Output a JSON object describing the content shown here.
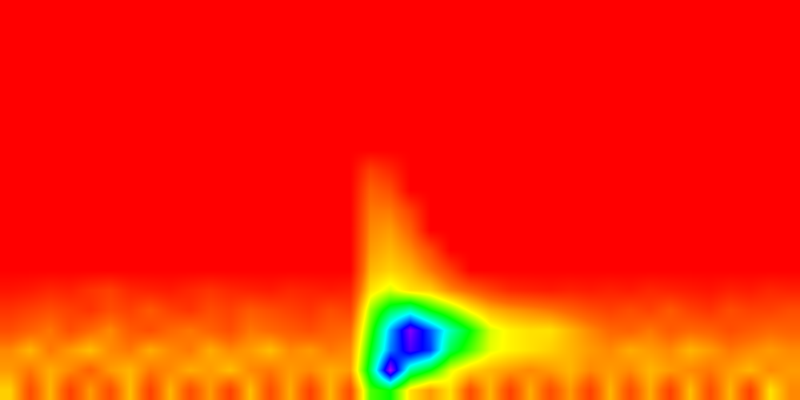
{
  "chart_data": {
    "type": "heatmap",
    "tick_labels": false,
    "grid": false,
    "xlim": [
      0,
      40
    ],
    "ylim": [
      0,
      20
    ],
    "zlim": [
      0,
      1
    ],
    "colors": [
      "#ff0000",
      "#ff6a00",
      "#ffff00",
      "#00ff00",
      "#00ffff",
      "#0000ff",
      "#ff00ff"
    ],
    "cells": [
      [
        0.28,
        0.12,
        0.25,
        0.1,
        0.22,
        0.12,
        0.26,
        0.1,
        0.25,
        0.12,
        0.22,
        0.1,
        0.26,
        0.12,
        0.24,
        0.1,
        0.25,
        0.12,
        0.45,
        0.5,
        0.3,
        0.22,
        0.3,
        0.12,
        0.25,
        0.1,
        0.24,
        0.12,
        0.22,
        0.1,
        0.25,
        0.12,
        0.24,
        0.1,
        0.26,
        0.12,
        0.25,
        0.1,
        0.3,
        0.2
      ],
      [
        0.22,
        0.18,
        0.24,
        0.2,
        0.15,
        0.22,
        0.25,
        0.18,
        0.2,
        0.24,
        0.22,
        0.26,
        0.2,
        0.18,
        0.22,
        0.2,
        0.24,
        0.22,
        0.55,
        0.95,
        0.6,
        0.5,
        0.35,
        0.28,
        0.25,
        0.22,
        0.2,
        0.22,
        0.25,
        0.2,
        0.22,
        0.2,
        0.25,
        0.22,
        0.2,
        0.18,
        0.22,
        0.25,
        0.2,
        0.22
      ],
      [
        0.2,
        0.25,
        0.18,
        0.22,
        0.26,
        0.2,
        0.18,
        0.24,
        0.2,
        0.18,
        0.24,
        0.2,
        0.22,
        0.26,
        0.2,
        0.22,
        0.18,
        0.2,
        0.5,
        0.75,
        0.88,
        0.8,
        0.55,
        0.45,
        0.35,
        0.32,
        0.3,
        0.28,
        0.25,
        0.22,
        0.2,
        0.24,
        0.22,
        0.2,
        0.25,
        0.22,
        0.18,
        0.2,
        0.22,
        0.2
      ],
      [
        0.12,
        0.15,
        0.18,
        0.12,
        0.16,
        0.2,
        0.14,
        0.12,
        0.16,
        0.18,
        0.15,
        0.12,
        0.18,
        0.16,
        0.14,
        0.12,
        0.15,
        0.16,
        0.45,
        0.72,
        0.92,
        0.78,
        0.62,
        0.5,
        0.36,
        0.32,
        0.3,
        0.3,
        0.25,
        0.2,
        0.16,
        0.15,
        0.18,
        0.14,
        0.16,
        0.15,
        0.12,
        0.14,
        0.16,
        0.15
      ],
      [
        0.08,
        0.1,
        0.12,
        0.1,
        0.08,
        0.12,
        0.1,
        0.14,
        0.1,
        0.08,
        0.12,
        0.1,
        0.14,
        0.12,
        0.1,
        0.08,
        0.12,
        0.1,
        0.4,
        0.55,
        0.62,
        0.5,
        0.42,
        0.32,
        0.25,
        0.22,
        0.2,
        0.18,
        0.15,
        0.12,
        0.1,
        0.12,
        0.1,
        0.14,
        0.1,
        0.08,
        0.12,
        0.1,
        0.1,
        0.12
      ],
      [
        0.03,
        0.04,
        0.06,
        0.05,
        0.08,
        0.1,
        0.06,
        0.05,
        0.04,
        0.06,
        0.08,
        0.06,
        0.05,
        0.04,
        0.06,
        0.05,
        0.04,
        0.05,
        0.3,
        0.36,
        0.3,
        0.28,
        0.2,
        0.15,
        0.1,
        0.06,
        0.05,
        0.04,
        0.05,
        0.04,
        0.05,
        0.04,
        0.06,
        0.05,
        0.04,
        0.03,
        0.05,
        0.04,
        0.06,
        0.05
      ],
      [
        0,
        0,
        0,
        0,
        0,
        0,
        0,
        0,
        0,
        0,
        0,
        0,
        0,
        0,
        0,
        0,
        0,
        0,
        0.25,
        0.28,
        0.25,
        0.18,
        0.1,
        0,
        0,
        0,
        0,
        0,
        0,
        0,
        0,
        0,
        0,
        0,
        0,
        0,
        0,
        0,
        0,
        0
      ],
      [
        0,
        0,
        0,
        0,
        0,
        0,
        0,
        0,
        0,
        0,
        0,
        0,
        0,
        0,
        0,
        0,
        0,
        0,
        0.22,
        0.25,
        0.2,
        0.12,
        0,
        0,
        0,
        0,
        0,
        0,
        0,
        0,
        0,
        0,
        0,
        0,
        0,
        0,
        0,
        0,
        0,
        0
      ],
      [
        0,
        0,
        0,
        0,
        0,
        0,
        0,
        0,
        0,
        0,
        0,
        0,
        0,
        0,
        0,
        0,
        0,
        0,
        0.2,
        0.22,
        0.15,
        0,
        0,
        0,
        0,
        0,
        0,
        0,
        0,
        0,
        0,
        0,
        0,
        0,
        0,
        0,
        0,
        0,
        0,
        0
      ],
      [
        0,
        0,
        0,
        0,
        0,
        0,
        0,
        0,
        0,
        0,
        0,
        0,
        0,
        0,
        0,
        0,
        0,
        0,
        0.18,
        0.18,
        0.1,
        0,
        0,
        0,
        0,
        0,
        0,
        0,
        0,
        0,
        0,
        0,
        0,
        0,
        0,
        0,
        0,
        0,
        0,
        0
      ],
      [
        0,
        0,
        0,
        0,
        0,
        0,
        0,
        0,
        0,
        0,
        0,
        0,
        0,
        0,
        0,
        0,
        0,
        0,
        0.15,
        0.12,
        0,
        0,
        0,
        0,
        0,
        0,
        0,
        0,
        0,
        0,
        0,
        0,
        0,
        0,
        0,
        0,
        0,
        0,
        0,
        0
      ],
      [
        0,
        0,
        0,
        0,
        0,
        0,
        0,
        0,
        0,
        0,
        0,
        0,
        0,
        0,
        0,
        0,
        0,
        0,
        0.1,
        0.06,
        0,
        0,
        0,
        0,
        0,
        0,
        0,
        0,
        0,
        0,
        0,
        0,
        0,
        0,
        0,
        0,
        0,
        0,
        0,
        0
      ],
      [
        0,
        0,
        0,
        0,
        0,
        0,
        0,
        0,
        0,
        0,
        0,
        0,
        0,
        0,
        0,
        0,
        0,
        0,
        0,
        0,
        0,
        0,
        0,
        0,
        0,
        0,
        0,
        0,
        0,
        0,
        0,
        0,
        0,
        0,
        0,
        0,
        0,
        0,
        0,
        0
      ],
      [
        0,
        0,
        0,
        0,
        0,
        0,
        0,
        0,
        0,
        0,
        0,
        0,
        0,
        0,
        0,
        0,
        0,
        0,
        0,
        0,
        0,
        0,
        0,
        0,
        0,
        0,
        0,
        0,
        0,
        0,
        0,
        0,
        0,
        0,
        0,
        0,
        0,
        0,
        0,
        0
      ],
      [
        0,
        0,
        0,
        0,
        0,
        0,
        0,
        0,
        0,
        0,
        0,
        0,
        0,
        0,
        0,
        0,
        0,
        0,
        0,
        0,
        0,
        0,
        0,
        0,
        0,
        0,
        0,
        0,
        0,
        0,
        0,
        0,
        0,
        0,
        0,
        0,
        0,
        0,
        0,
        0
      ],
      [
        0,
        0,
        0,
        0,
        0,
        0,
        0,
        0,
        0,
        0,
        0,
        0,
        0,
        0,
        0,
        0,
        0,
        0,
        0,
        0,
        0,
        0,
        0,
        0,
        0,
        0,
        0,
        0,
        0,
        0,
        0,
        0,
        0,
        0,
        0,
        0,
        0,
        0,
        0,
        0
      ],
      [
        0,
        0,
        0,
        0,
        0,
        0,
        0,
        0,
        0,
        0,
        0,
        0,
        0,
        0,
        0,
        0,
        0,
        0,
        0,
        0,
        0,
        0,
        0,
        0,
        0,
        0,
        0,
        0,
        0,
        0,
        0,
        0,
        0,
        0,
        0,
        0,
        0,
        0,
        0,
        0
      ],
      [
        0,
        0,
        0,
        0,
        0,
        0,
        0,
        0,
        0,
        0,
        0,
        0,
        0,
        0,
        0,
        0,
        0,
        0,
        0,
        0,
        0,
        0,
        0,
        0,
        0,
        0,
        0,
        0,
        0,
        0,
        0,
        0,
        0,
        0,
        0,
        0,
        0,
        0,
        0,
        0
      ],
      [
        0,
        0,
        0,
        0,
        0,
        0,
        0,
        0,
        0,
        0,
        0,
        0,
        0,
        0,
        0,
        0,
        0,
        0,
        0,
        0,
        0,
        0,
        0,
        0,
        0,
        0,
        0,
        0,
        0,
        0,
        0,
        0,
        0,
        0,
        0,
        0,
        0,
        0,
        0,
        0
      ],
      [
        0,
        0,
        0,
        0,
        0,
        0,
        0,
        0,
        0,
        0,
        0,
        0,
        0,
        0,
        0,
        0,
        0,
        0,
        0,
        0,
        0,
        0,
        0,
        0,
        0,
        0,
        0,
        0,
        0,
        0,
        0,
        0,
        0,
        0,
        0,
        0,
        0,
        0,
        0,
        0
      ]
    ]
  }
}
